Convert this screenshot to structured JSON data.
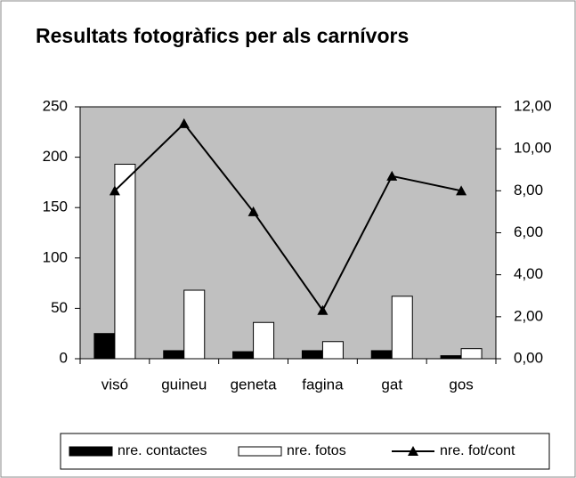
{
  "chart_data": {
    "type": "bar-line",
    "title": "Resultats fotogràfics per als carnívors",
    "categories": [
      "visó",
      "guineu",
      "geneta",
      "fagina",
      "gat",
      "gos"
    ],
    "series": [
      {
        "name": "nre. contactes",
        "color": "#000000",
        "type": "bar",
        "values": [
          25,
          8,
          7,
          8,
          8,
          3
        ]
      },
      {
        "name": "nre. fotos",
        "color": "#ffffff",
        "type": "bar",
        "values": [
          193,
          68,
          36,
          17,
          62,
          10
        ]
      },
      {
        "name": "nre. fot/cont",
        "color": "#000000",
        "type": "line",
        "axis": "y2",
        "values": [
          8.0,
          11.2,
          7.0,
          2.3,
          8.7,
          8.0
        ]
      }
    ],
    "ylim": [
      0,
      250
    ],
    "yticks": [
      0,
      50,
      100,
      150,
      200,
      250
    ],
    "y2lim": [
      0,
      12
    ],
    "y2ticks": [
      {
        "value": 0,
        "label": "0,00"
      },
      {
        "value": 2,
        "label": "2,00"
      },
      {
        "value": 4,
        "label": "4,00"
      },
      {
        "value": 6,
        "label": "6,00"
      },
      {
        "value": 8,
        "label": "8,00"
      },
      {
        "value": 10,
        "label": "10,00"
      },
      {
        "value": 12,
        "label": "12,00"
      }
    ],
    "plot_background": "#c0c0c0",
    "grid": false,
    "legend": "bottom"
  }
}
